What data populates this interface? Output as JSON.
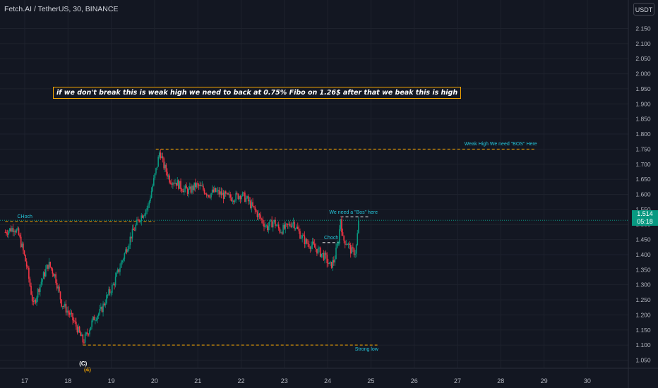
{
  "header": {
    "title": "Fetch.AI / TetherUS, 30, BINANCE",
    "currency_button": "USDT"
  },
  "colors": {
    "background": "#131722",
    "up": "#089981",
    "down": "#f23645",
    "annotation": "#f7a600",
    "label": "#26c6da"
  },
  "chart_data": {
    "type": "candlestick",
    "title": "Fetch.AI / TetherUS, 30, BINANCE",
    "x_tick_labels": [
      "17",
      "18",
      "19",
      "20",
      "21",
      "22",
      "23",
      "24",
      "25",
      "26",
      "27",
      "28",
      "29",
      "30"
    ],
    "y_tick_labels": [
      "2.150",
      "2.100",
      "2.050",
      "2.000",
      "1.950",
      "1.900",
      "1.850",
      "1.800",
      "1.750",
      "1.700",
      "1.650",
      "1.600",
      "1.550",
      "1.500",
      "1.450",
      "1.400",
      "1.350",
      "1.300",
      "1.250",
      "1.200",
      "1.150",
      "1.100",
      "1.050"
    ],
    "ylim": [
      1.05,
      2.15
    ],
    "x_range": [
      16.55,
      31.0
    ],
    "last_price": "1.514",
    "countdown": "05:18",
    "price_path": [
      [
        16.55,
        1.475
      ],
      [
        16.75,
        1.49
      ],
      [
        16.85,
        1.47
      ],
      [
        16.95,
        1.42
      ],
      [
        17.05,
        1.36
      ],
      [
        17.2,
        1.23
      ],
      [
        17.35,
        1.3
      ],
      [
        17.55,
        1.37
      ],
      [
        17.7,
        1.33
      ],
      [
        17.85,
        1.24
      ],
      [
        17.95,
        1.22
      ],
      [
        18.05,
        1.2
      ],
      [
        18.2,
        1.16
      ],
      [
        18.35,
        1.11
      ],
      [
        18.45,
        1.14
      ],
      [
        18.6,
        1.19
      ],
      [
        18.75,
        1.21
      ],
      [
        18.9,
        1.26
      ],
      [
        19.05,
        1.3
      ],
      [
        19.25,
        1.38
      ],
      [
        19.45,
        1.46
      ],
      [
        19.65,
        1.52
      ],
      [
        19.85,
        1.56
      ],
      [
        20.05,
        1.69
      ],
      [
        20.12,
        1.745
      ],
      [
        20.2,
        1.7
      ],
      [
        20.35,
        1.65
      ],
      [
        20.5,
        1.64
      ],
      [
        20.65,
        1.62
      ],
      [
        20.8,
        1.61
      ],
      [
        20.95,
        1.63
      ],
      [
        21.1,
        1.62
      ],
      [
        21.25,
        1.6
      ],
      [
        21.4,
        1.61
      ],
      [
        21.55,
        1.6
      ],
      [
        21.7,
        1.59
      ],
      [
        21.85,
        1.59
      ],
      [
        22.0,
        1.6
      ],
      [
        22.15,
        1.58
      ],
      [
        22.3,
        1.55
      ],
      [
        22.45,
        1.52
      ],
      [
        22.6,
        1.49
      ],
      [
        22.75,
        1.51
      ],
      [
        22.9,
        1.48
      ],
      [
        23.05,
        1.49
      ],
      [
        23.2,
        1.51
      ],
      [
        23.35,
        1.47
      ],
      [
        23.5,
        1.44
      ],
      [
        23.65,
        1.43
      ],
      [
        23.8,
        1.41
      ],
      [
        23.95,
        1.39
      ],
      [
        24.05,
        1.36
      ],
      [
        24.15,
        1.38
      ],
      [
        24.25,
        1.45
      ],
      [
        24.3,
        1.525
      ],
      [
        24.35,
        1.45
      ],
      [
        24.45,
        1.44
      ],
      [
        24.55,
        1.41
      ],
      [
        24.65,
        1.41
      ],
      [
        24.72,
        1.514
      ]
    ],
    "levels": [
      {
        "label": "Weak High We need \"BOS\" Here",
        "y": 1.75,
        "x_start": 20.03,
        "x_end": 28.8,
        "color": "#f7a600",
        "label_x": 28.0
      },
      {
        "label": "CHoch",
        "y": 1.51,
        "x_start": 16.55,
        "x_end": 20.0,
        "color": "#f7a600",
        "label_x": 17.0
      },
      {
        "label": "We need a \"Bos\" here",
        "y": 1.525,
        "x_start": 24.3,
        "x_end": 24.95,
        "color": "#ffffff",
        "label_x": 24.6
      },
      {
        "label": "Choch",
        "y": 1.44,
        "x_start": 23.88,
        "x_end": 24.3,
        "color": "#ffffff",
        "label_x": 24.08
      },
      {
        "label": "Strong low",
        "y": 1.1,
        "x_start": 18.35,
        "x_end": 25.15,
        "color": "#f7a600",
        "label_x": 24.9
      }
    ],
    "wave_labels": [
      {
        "label": "(C)",
        "x": 18.35,
        "y": 1.075,
        "color": "#ffffff"
      },
      {
        "label": "(4)",
        "x": 18.45,
        "y": 1.055,
        "color": "#f7a600"
      }
    ],
    "annotation": "if we don't break this is weak high we need to back at 0.75% Fibo on 1.26$ after that we beak this is high"
  }
}
